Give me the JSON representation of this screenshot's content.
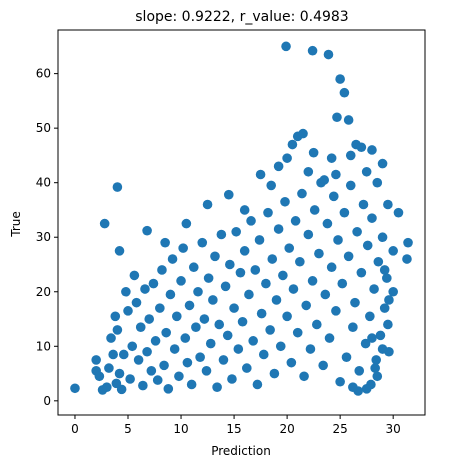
{
  "chart_data": {
    "type": "scatter",
    "title": "slope: 0.9222, r_value: 0.4983",
    "xlabel": "Prediction",
    "ylabel": "True",
    "xlim": [
      -1.6,
      33.0
    ],
    "ylim": [
      -2.6,
      68.0
    ],
    "xticks": [
      0,
      5,
      10,
      15,
      20,
      25,
      30
    ],
    "yticks": [
      0,
      10,
      20,
      30,
      40,
      50,
      60
    ],
    "grid": false,
    "marker_color": "#1f77b4",
    "series": [
      {
        "points": [
          [
            0.0,
            2.3
          ],
          [
            2.0,
            7.5
          ],
          [
            2.0,
            5.5
          ],
          [
            2.3,
            4.5
          ],
          [
            2.6,
            2.0
          ],
          [
            3.0,
            2.5
          ],
          [
            3.2,
            6.0
          ],
          [
            3.4,
            11.5
          ],
          [
            3.6,
            8.5
          ],
          [
            3.8,
            15.5
          ],
          [
            3.9,
            3.2
          ],
          [
            4.0,
            13.0
          ],
          [
            4.2,
            5.0
          ],
          [
            4.4,
            2.1
          ],
          [
            4.6,
            8.5
          ],
          [
            4.8,
            20.0
          ],
          [
            5.0,
            16.5
          ],
          [
            5.2,
            4.0
          ],
          [
            5.4,
            10.0
          ],
          [
            5.6,
            23.0
          ],
          [
            5.8,
            18.0
          ],
          [
            6.0,
            7.5
          ],
          [
            6.2,
            13.5
          ],
          [
            6.4,
            2.8
          ],
          [
            6.6,
            20.5
          ],
          [
            6.8,
            9.0
          ],
          [
            7.0,
            15.0
          ],
          [
            7.2,
            5.5
          ],
          [
            7.4,
            21.5
          ],
          [
            7.6,
            11.0
          ],
          [
            7.8,
            3.8
          ],
          [
            8.0,
            17.0
          ],
          [
            8.2,
            24.0
          ],
          [
            8.4,
            6.5
          ],
          [
            8.6,
            12.5
          ],
          [
            8.8,
            2.2
          ],
          [
            9.0,
            19.5
          ],
          [
            9.2,
            26.0
          ],
          [
            9.4,
            9.5
          ],
          [
            9.6,
            15.5
          ],
          [
            9.8,
            4.5
          ],
          [
            10.0,
            22.0
          ],
          [
            10.2,
            28.0
          ],
          [
            10.4,
            11.5
          ],
          [
            10.6,
            7.0
          ],
          [
            10.8,
            17.5
          ],
          [
            11.0,
            3.0
          ],
          [
            11.2,
            24.5
          ],
          [
            11.4,
            13.5
          ],
          [
            11.6,
            20.0
          ],
          [
            11.8,
            8.0
          ],
          [
            12.0,
            29.0
          ],
          [
            12.2,
            15.0
          ],
          [
            12.4,
            5.5
          ],
          [
            12.6,
            22.5
          ],
          [
            12.8,
            10.5
          ],
          [
            13.0,
            18.5
          ],
          [
            13.2,
            26.5
          ],
          [
            13.4,
            2.5
          ],
          [
            13.6,
            14.0
          ],
          [
            13.8,
            30.5
          ],
          [
            14.0,
            7.5
          ],
          [
            14.2,
            21.0
          ],
          [
            14.4,
            12.0
          ],
          [
            14.6,
            25.0
          ],
          [
            14.8,
            4.0
          ],
          [
            15.0,
            17.0
          ],
          [
            15.2,
            31.0
          ],
          [
            15.4,
            9.5
          ],
          [
            15.6,
            23.5
          ],
          [
            15.8,
            14.5
          ],
          [
            16.0,
            27.5
          ],
          [
            16.2,
            6.0
          ],
          [
            16.4,
            19.5
          ],
          [
            16.6,
            33.0
          ],
          [
            16.8,
            11.0
          ],
          [
            17.0,
            24.0
          ],
          [
            17.2,
            3.0
          ],
          [
            17.4,
            29.5
          ],
          [
            17.6,
            16.0
          ],
          [
            17.8,
            8.5
          ],
          [
            18.0,
            21.5
          ],
          [
            18.2,
            34.5
          ],
          [
            18.4,
            13.0
          ],
          [
            18.6,
            26.0
          ],
          [
            18.8,
            5.0
          ],
          [
            19.0,
            18.5
          ],
          [
            19.2,
            31.5
          ],
          [
            19.4,
            10.0
          ],
          [
            19.6,
            23.0
          ],
          [
            19.8,
            36.5
          ],
          [
            20.0,
            15.5
          ],
          [
            20.2,
            28.0
          ],
          [
            20.4,
            7.0
          ],
          [
            20.6,
            20.5
          ],
          [
            20.8,
            33.0
          ],
          [
            21.0,
            12.5
          ],
          [
            21.2,
            25.5
          ],
          [
            21.4,
            38.0
          ],
          [
            21.6,
            4.5
          ],
          [
            21.8,
            17.5
          ],
          [
            22.0,
            30.5
          ],
          [
            22.2,
            9.5
          ],
          [
            22.4,
            22.0
          ],
          [
            22.6,
            35.0
          ],
          [
            22.8,
            14.0
          ],
          [
            23.0,
            27.0
          ],
          [
            23.2,
            40.0
          ],
          [
            23.4,
            6.5
          ],
          [
            23.6,
            19.5
          ],
          [
            23.8,
            32.5
          ],
          [
            24.0,
            11.5
          ],
          [
            24.2,
            24.5
          ],
          [
            24.4,
            37.5
          ],
          [
            24.6,
            16.5
          ],
          [
            24.8,
            29.5
          ],
          [
            25.0,
            3.5
          ],
          [
            25.2,
            21.5
          ],
          [
            25.4,
            34.5
          ],
          [
            25.6,
            8.0
          ],
          [
            25.8,
            26.5
          ],
          [
            26.0,
            39.5
          ],
          [
            26.2,
            13.5
          ],
          [
            26.4,
            18.0
          ],
          [
            26.6,
            31.0
          ],
          [
            26.8,
            5.5
          ],
          [
            27.0,
            23.5
          ],
          [
            27.2,
            36.0
          ],
          [
            27.4,
            10.5
          ],
          [
            27.6,
            28.5
          ],
          [
            27.8,
            15.5
          ],
          [
            28.0,
            33.5
          ],
          [
            28.2,
            20.5
          ],
          [
            28.4,
            7.5
          ],
          [
            28.6,
            25.5
          ],
          [
            28.8,
            12.0
          ],
          [
            29.0,
            30.0
          ],
          [
            29.2,
            17.0
          ],
          [
            29.4,
            22.5
          ],
          [
            29.6,
            9.0
          ],
          [
            30.0,
            27.5
          ],
          [
            30.5,
            34.5
          ],
          [
            31.4,
            29.0
          ],
          [
            31.3,
            26.0
          ],
          [
            2.8,
            32.5
          ],
          [
            4.0,
            39.2
          ],
          [
            4.2,
            27.5
          ],
          [
            6.8,
            31.2
          ],
          [
            8.5,
            29.0
          ],
          [
            10.5,
            32.5
          ],
          [
            12.5,
            36.0
          ],
          [
            14.5,
            37.8
          ],
          [
            16.0,
            35.0
          ],
          [
            17.5,
            41.5
          ],
          [
            18.5,
            39.5
          ],
          [
            19.2,
            43.0
          ],
          [
            20.0,
            44.5
          ],
          [
            20.5,
            47.0
          ],
          [
            21.0,
            48.5
          ],
          [
            21.5,
            49.0
          ],
          [
            22.0,
            42.0
          ],
          [
            22.5,
            45.5
          ],
          [
            23.5,
            40.5
          ],
          [
            24.2,
            44.5
          ],
          [
            24.7,
            52.0
          ],
          [
            25.0,
            59.0
          ],
          [
            25.4,
            56.5
          ],
          [
            25.8,
            51.5
          ],
          [
            26.5,
            47.0
          ],
          [
            27.0,
            46.5
          ],
          [
            27.5,
            42.0
          ],
          [
            28.0,
            46.0
          ],
          [
            28.5,
            40.0
          ],
          [
            29.0,
            43.5
          ],
          [
            19.9,
            65.0
          ],
          [
            22.4,
            64.2
          ],
          [
            23.9,
            63.5
          ],
          [
            24.6,
            41.5
          ],
          [
            26.0,
            45.0
          ],
          [
            29.5,
            36.0
          ],
          [
            30.0,
            20.0
          ],
          [
            29.5,
            14.0
          ],
          [
            29.0,
            9.5
          ],
          [
            28.5,
            4.5
          ],
          [
            27.9,
            3.0
          ],
          [
            28.3,
            6.0
          ],
          [
            29.6,
            18.5
          ],
          [
            29.2,
            24.0
          ],
          [
            28.0,
            11.5
          ],
          [
            27.5,
            2.2
          ],
          [
            26.7,
            1.8
          ],
          [
            26.2,
            2.5
          ]
        ]
      }
    ]
  }
}
